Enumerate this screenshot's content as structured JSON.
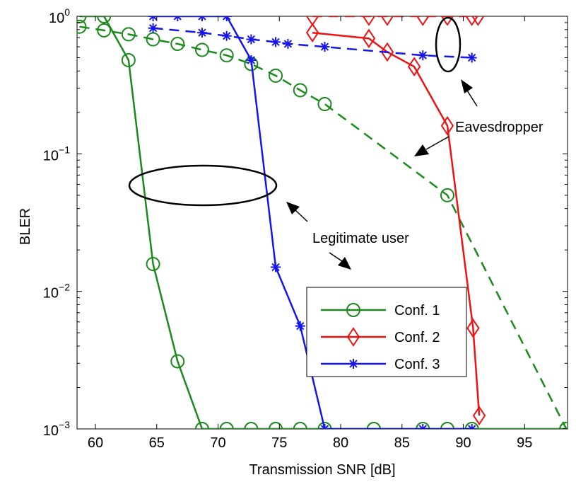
{
  "chart_data": {
    "type": "line",
    "xlabel": "Transmission SNR [dB]",
    "ylabel": "BLER",
    "xlim": [
      58.5,
      98.5
    ],
    "ylim": [
      0.001,
      1
    ],
    "y_scale": "log",
    "grid": false,
    "legend_position": "bottom-right",
    "x_ticks": [
      {
        "value": 60,
        "label": "60"
      },
      {
        "value": 65,
        "label": "65"
      },
      {
        "value": 70,
        "label": "70"
      },
      {
        "value": 75,
        "label": "75"
      },
      {
        "value": 80,
        "label": "80"
      },
      {
        "value": 85,
        "label": "85"
      },
      {
        "value": 90,
        "label": "90"
      },
      {
        "value": 95,
        "label": "95"
      }
    ],
    "y_ticks": [
      {
        "value": 0.001,
        "base": "10",
        "exp": "−3"
      },
      {
        "value": 0.01,
        "base": "10",
        "exp": "−2"
      },
      {
        "value": 0.1,
        "base": "10",
        "exp": "−1"
      },
      {
        "value": 1,
        "base": "10",
        "exp": "0"
      }
    ],
    "series": [
      {
        "name": "Conf. 1",
        "group": "legitimate",
        "color": "#1a8a1a",
        "line": "solid",
        "marker": "circle",
        "x": [
          58.7,
          60.7,
          62.7,
          64.7,
          66.7,
          68.7,
          70.7,
          72.7,
          74.7,
          76.7,
          78.7,
          82.7,
          86.7,
          88.7,
          90.7,
          98.4
        ],
        "y": [
          1,
          1,
          0.48,
          0.0158,
          0.0031,
          0.001,
          0.001,
          0.001,
          0.001,
          0.001,
          0.001,
          0.001,
          0.001,
          0.001,
          0.001,
          0.001
        ]
      },
      {
        "name": "Conf. 1",
        "group": "eavesdropper",
        "color": "#1a8a1a",
        "line": "dashed",
        "marker": "circle",
        "x": [
          58.7,
          60.7,
          62.7,
          64.7,
          66.7,
          68.7,
          70.7,
          72.7,
          74.7,
          76.7,
          78.7,
          88.7,
          98.4
        ],
        "y": [
          0.84,
          0.79,
          0.74,
          0.68,
          0.63,
          0.57,
          0.52,
          0.45,
          0.37,
          0.29,
          0.23,
          0.05,
          0.001
        ]
      },
      {
        "name": "Conf. 2",
        "group": "legitimate",
        "color": "#ee1111",
        "line": "solid",
        "marker": "diamond",
        "x": [
          77.7,
          82.3,
          83.8,
          86.0,
          88.7,
          90.8,
          91.3
        ],
        "y": [
          0.76,
          0.69,
          0.55,
          0.43,
          0.16,
          0.0054,
          0.00125
        ]
      },
      {
        "name": "Conf. 2",
        "group": "eavesdropper",
        "color": "#ee1111",
        "line": "dashed",
        "marker": "diamond",
        "x": [
          77.7,
          82.3,
          83.8,
          86.7,
          88.7,
          90.7,
          91.2
        ],
        "y": [
          1,
          1,
          1,
          1,
          1,
          1,
          1
        ]
      },
      {
        "name": "Conf. 3",
        "group": "legitimate",
        "color": "#1515ee",
        "line": "solid",
        "marker": "asterisk",
        "x": [
          64.7,
          66.7,
          68.7,
          70.7,
          72.7,
          74.7,
          76.7,
          78.7,
          86.7,
          90.7
        ],
        "y": [
          1,
          1,
          1,
          1,
          0.48,
          0.015,
          0.0056,
          0.001,
          0.001,
          0.001
        ]
      },
      {
        "name": "Conf. 3",
        "group": "eavesdropper",
        "color": "#1515ee",
        "line": "dashed",
        "marker": "asterisk",
        "x": [
          64.7,
          68.7,
          70.7,
          72.7,
          74.7,
          75.7,
          78.7,
          86.7,
          90.7
        ],
        "y": [
          0.82,
          0.76,
          0.72,
          0.68,
          0.65,
          0.63,
          0.6,
          0.52,
          0.5
        ]
      }
    ],
    "legend": [
      {
        "label": "Conf. 1",
        "color": "#1a8a1a",
        "marker": "circle"
      },
      {
        "label": "Conf. 2",
        "color": "#ee1111",
        "marker": "diamond"
      },
      {
        "label": "Conf. 3",
        "color": "#1515ee",
        "marker": "asterisk"
      }
    ],
    "annotations": [
      {
        "name": "eavesdropper-label",
        "text": "Eavesdropper"
      },
      {
        "name": "legitimate-user-label",
        "text": "Legitimate user"
      }
    ]
  }
}
